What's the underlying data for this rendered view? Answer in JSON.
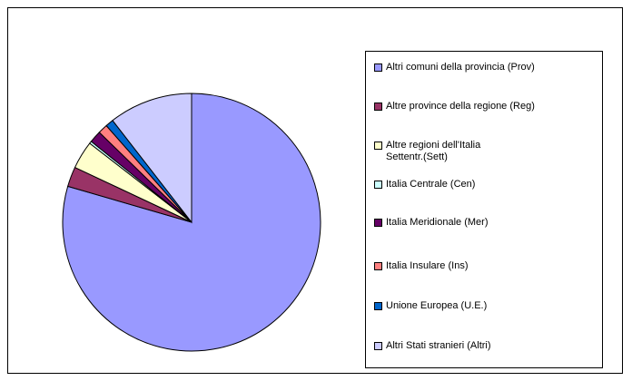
{
  "chart_data": {
    "type": "pie",
    "title": "",
    "categories": [
      "Altri comuni della provincia (Prov)",
      "Altre province della regione (Reg)",
      "Altre regioni dell'Italia\nSettentr.(Sett)",
      "Italia Centrale (Cen)",
      "Italia Meridionale (Mer)",
      "Italia Insulare (Ins)",
      "Unione Europea (U.E.)",
      "Altri Stati stranieri  (Altri)"
    ],
    "values": [
      79.5,
      2.5,
      3.5,
      0.3,
      1.5,
      1.2,
      1.0,
      10.5
    ],
    "colors": [
      "#9999ff",
      "#993366",
      "#ffffcc",
      "#ccffff",
      "#660066",
      "#ff8080",
      "#0066cc",
      "#ccccff"
    ],
    "start_angle_deg": 0,
    "direction": "clockwise",
    "legend_position": "right"
  }
}
